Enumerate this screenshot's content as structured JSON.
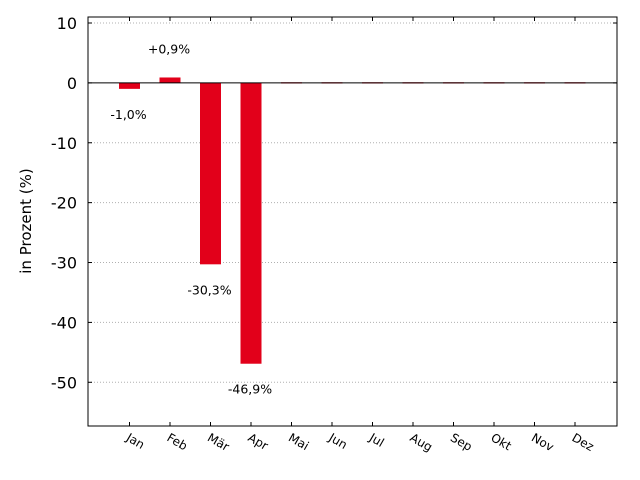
{
  "chart_data": {
    "type": "bar",
    "categories": [
      "Jan",
      "Feb",
      "Mär",
      "Apr",
      "Mai",
      "Jun",
      "Jul",
      "Aug",
      "Sep",
      "Okt",
      "Nov",
      "Dez"
    ],
    "values": [
      -1.0,
      0.9,
      -30.3,
      -46.9,
      0,
      0,
      0,
      0,
      0,
      0,
      0,
      0
    ],
    "data_labels": [
      "-1,0%",
      "+0,9%",
      "-30,3%",
      "-46,9%",
      "",
      "",
      "",
      "",
      "",
      "",
      "",
      ""
    ],
    "title": "",
    "xlabel": "",
    "ylabel": "in Prozent (%)",
    "ylim": [
      -57.3,
      11.0
    ],
    "yticks": [
      10,
      0,
      -10,
      -20,
      -30,
      -40,
      -50
    ],
    "ytick_labels": [
      "10",
      "0",
      "-10",
      "-20",
      "-30",
      "-40",
      "-50"
    ],
    "grid": true,
    "bar_color": "#e2001a",
    "zero_line": true
  }
}
